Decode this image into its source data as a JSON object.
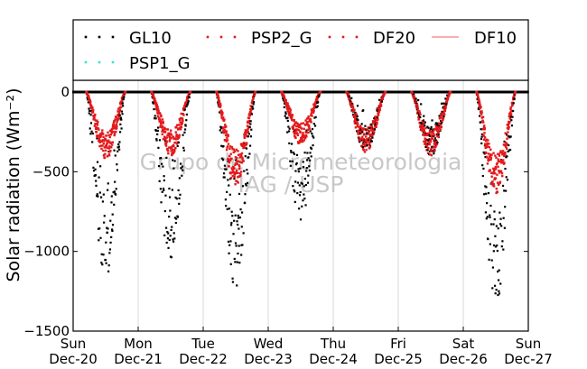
{
  "chart_data": {
    "type": "scatter",
    "title": "",
    "ylabel": "Solar radiation (Wm⁻²)",
    "xlabel": "",
    "ylim": [
      -1500,
      0
    ],
    "yticks": [
      0,
      -500,
      -1000,
      -1500
    ],
    "ytick_labels": [
      "0",
      "−500",
      "−1000",
      "−1500"
    ],
    "xlim": [
      0,
      7
    ],
    "x_categories": [
      {
        "day": "Sun",
        "date": "Dec-20"
      },
      {
        "day": "Mon",
        "date": "Dec-21"
      },
      {
        "day": "Tue",
        "date": "Dec-22"
      },
      {
        "day": "Wed",
        "date": "Dec-23"
      },
      {
        "day": "Thu",
        "date": "Dec-24"
      },
      {
        "day": "Fri",
        "date": "Dec-25"
      },
      {
        "day": "Sat",
        "date": "Dec-26"
      },
      {
        "day": "Sun",
        "date": "Dec-27"
      }
    ],
    "grid": "vertical",
    "legend": {
      "placement": "top",
      "entries": [
        {
          "label": "GL10",
          "style": "dots",
          "color": "#000000"
        },
        {
          "label": "PSP2_G",
          "style": "dots",
          "color": "#e31a1c"
        },
        {
          "label": "DF20",
          "style": "dots",
          "color": "#e31a1c"
        },
        {
          "label": "DF10",
          "style": "line",
          "color": "#f08080"
        },
        {
          "label": "PSP1_G",
          "style": "dots",
          "color": "#40e0d0"
        }
      ]
    },
    "watermark": [
      "Grupo de Micrometeorologia",
      "IAG / USP"
    ],
    "days": [
      {
        "start": 0.2,
        "end": 0.8,
        "gl_peak": -1200,
        "red_peak": -420
      },
      {
        "start": 1.2,
        "end": 1.8,
        "gl_peak": -1120,
        "red_peak": -400
      },
      {
        "start": 2.2,
        "end": 2.8,
        "gl_peak": -1270,
        "red_peak": -600
      },
      {
        "start": 3.2,
        "end": 3.8,
        "gl_peak": -800,
        "red_peak": -330
      },
      {
        "start": 4.2,
        "end": 4.8,
        "gl_peak": -380,
        "red_peak": -380
      },
      {
        "start": 5.2,
        "end": 5.8,
        "gl_peak": -400,
        "red_peak": -400
      },
      {
        "start": 6.2,
        "end": 6.8,
        "gl_peak": -1360,
        "red_peak": -640
      }
    ]
  }
}
